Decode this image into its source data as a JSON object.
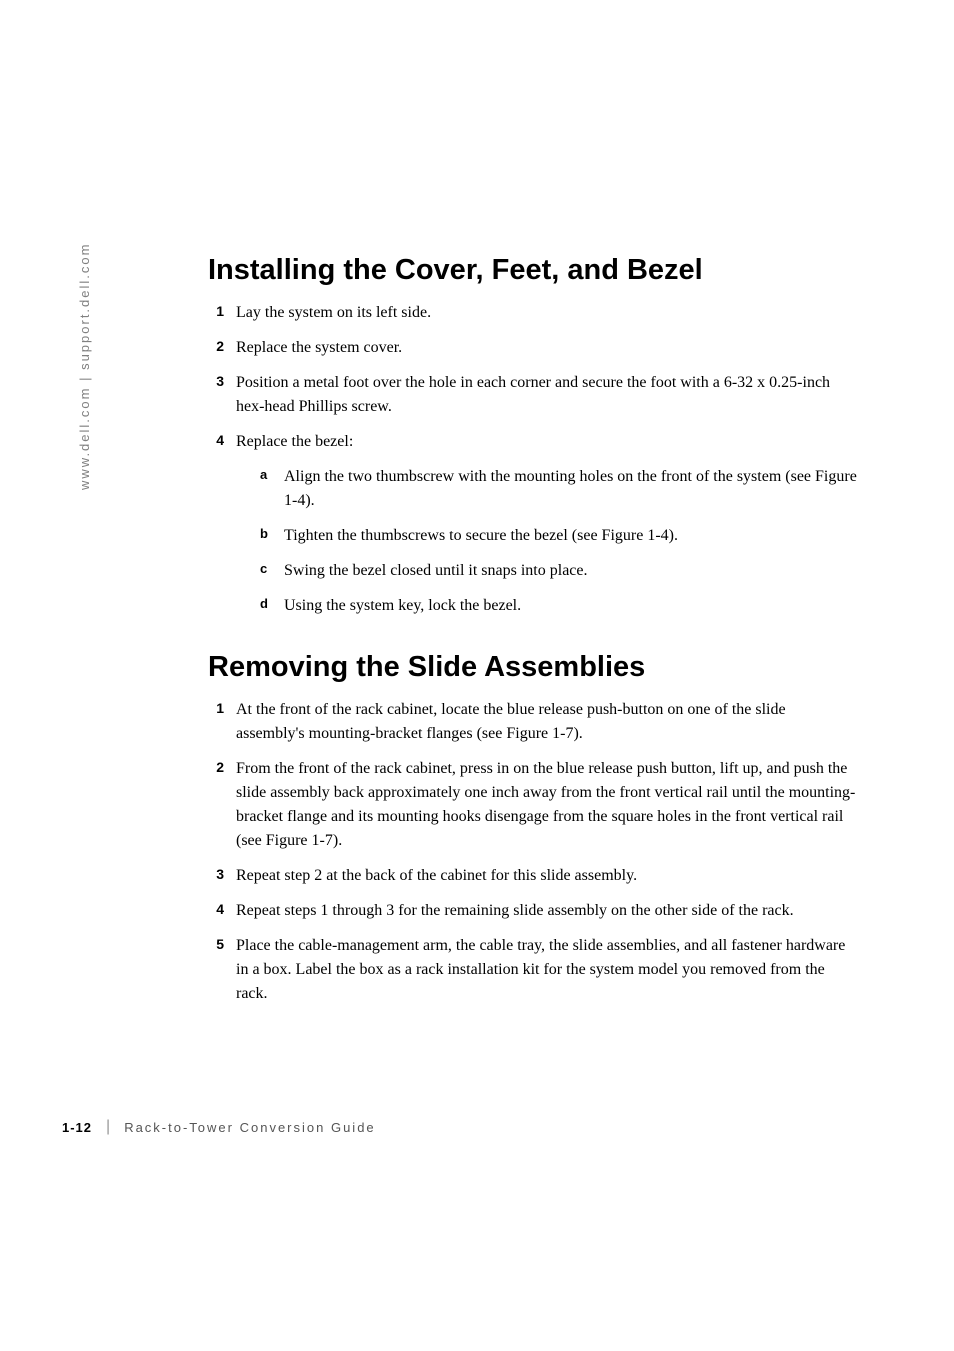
{
  "sidebar": {
    "url": "www.dell.com | support.dell.com"
  },
  "sections": [
    {
      "heading": "Installing the Cover, Feet, and Bezel",
      "items": [
        {
          "number": "1",
          "text": "Lay the system on its left side."
        },
        {
          "number": "2",
          "text": "Replace the system cover."
        },
        {
          "number": "3",
          "text": "Position a metal foot over the hole in each corner and secure the foot with a 6-32 x 0.25-inch hex-head Phillips screw."
        },
        {
          "number": "4",
          "text": "Replace the bezel:",
          "subitems": [
            {
              "letter": "a",
              "text": "Align the two thumbscrew with the mounting holes on the front of the system (see Figure 1-4)."
            },
            {
              "letter": "b",
              "text": "Tighten the thumbscrews to secure the bezel (see Figure 1-4)."
            },
            {
              "letter": "c",
              "text": "Swing the bezel closed until it snaps into place."
            },
            {
              "letter": "d",
              "text": "Using the system key, lock the bezel."
            }
          ]
        }
      ]
    },
    {
      "heading": "Removing the Slide Assemblies",
      "items": [
        {
          "number": "1",
          "text": "At the front of the rack cabinet, locate the blue release push-button on one of the slide assembly's mounting-bracket flanges (see Figure 1-7)."
        },
        {
          "number": "2",
          "text": "From the front of the rack cabinet, press in on the blue release push button, lift up, and push the slide assembly back approximately one inch away from the front vertical rail until the mounting-bracket flange and its mounting hooks disengage from the square holes in the front vertical rail (see Figure 1-7)."
        },
        {
          "number": "3",
          "text": "Repeat step 2 at the back of the cabinet for this slide assembly."
        },
        {
          "number": "4",
          "text": "Repeat steps 1 through 3 for the remaining slide assembly on the other side of the rack."
        },
        {
          "number": "5",
          "text": "Place the cable-management arm, the cable tray, the slide assemblies, and all fastener hardware in a box. Label the box as a rack installation kit for the system model you removed from the rack."
        }
      ]
    }
  ],
  "footer": {
    "page_number": "1-12",
    "divider": "|",
    "title": "Rack-to-Tower Conversion Guide"
  },
  "colors": {
    "background": "#ffffff",
    "text": "#000000",
    "sidebar_text": "#808080",
    "footer_text": "#555555"
  },
  "typography": {
    "heading_fontsize": 29,
    "body_fontsize": 16,
    "number_fontsize": 14,
    "subletter_fontsize": 13,
    "footer_fontsize": 13,
    "sidebar_fontsize": 13
  }
}
